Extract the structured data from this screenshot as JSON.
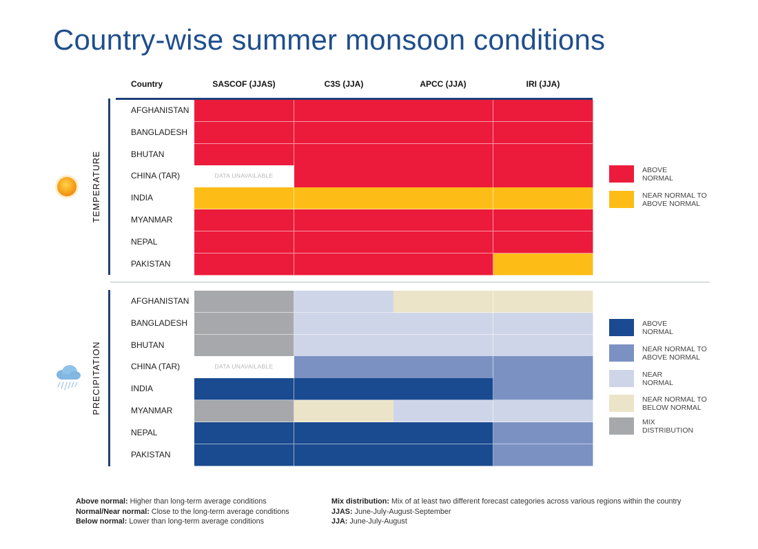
{
  "title": "Country-wise summer monsoon conditions",
  "headers": {
    "country": "Country",
    "sources": [
      "SASCOF (JJAS)",
      "C3S (JJA)",
      "APCC (JJA)",
      "IRI (JJA)"
    ]
  },
  "icons": {
    "temperature": "sun-icon",
    "precipitation": "rain-cloud-icon"
  },
  "chart_data": {
    "type": "table",
    "columns": [
      "SASCOF (JJAS)",
      "C3S (JJA)",
      "APCC (JJA)",
      "IRI (JJA)"
    ],
    "unavailable_label": "DATA UNAVAILABLE",
    "sections": [
      {
        "name": "TEMPERATURE",
        "categories": {
          "AN": {
            "label": "ABOVE\nNORMAL",
            "color": "#ec1b3b"
          },
          "NNAN": {
            "label": "NEAR NORMAL TO\nABOVE NORMAL",
            "color": "#fdbd16"
          }
        },
        "legend_order": [
          "AN",
          "NNAN"
        ],
        "rows": [
          {
            "country": "AFGHANISTAN",
            "values": [
              "AN",
              "AN",
              "AN",
              "AN"
            ]
          },
          {
            "country": "BANGLADESH",
            "values": [
              "AN",
              "AN",
              "AN",
              "AN"
            ]
          },
          {
            "country": "BHUTAN",
            "values": [
              "AN",
              "AN",
              "AN",
              "AN"
            ]
          },
          {
            "country": "CHINA (TAR)",
            "values": [
              "NA",
              "AN",
              "AN",
              "AN"
            ]
          },
          {
            "country": "INDIA",
            "values": [
              "NNAN",
              "NNAN",
              "NNAN",
              "NNAN"
            ]
          },
          {
            "country": "MYANMAR",
            "values": [
              "AN",
              "AN",
              "AN",
              "AN"
            ]
          },
          {
            "country": "NEPAL",
            "values": [
              "AN",
              "AN",
              "AN",
              "AN"
            ]
          },
          {
            "country": "PAKISTAN",
            "values": [
              "AN",
              "AN",
              "AN",
              "NNAN"
            ]
          }
        ]
      },
      {
        "name": "PRECIPITATION",
        "categories": {
          "AN": {
            "label": "ABOVE\nNORMAL",
            "color": "#1a4a8f"
          },
          "NNAN": {
            "label": "NEAR NORMAL TO\nABOVE NORMAL",
            "color": "#7a91c2"
          },
          "NN": {
            "label": "NEAR\nNORMAL",
            "color": "#cfd5e8"
          },
          "NNBN": {
            "label": "NEAR NORMAL TO\nBELOW NORMAL",
            "color": "#ece4c8"
          },
          "MIX": {
            "label": "MIX\nDISTRIBUTION",
            "color": "#a7a8ab"
          }
        },
        "legend_order": [
          "AN",
          "NNAN",
          "NN",
          "NNBN",
          "MIX"
        ],
        "rows": [
          {
            "country": "AFGHANISTAN",
            "values": [
              "MIX",
              "NN",
              "NNBN",
              "NNBN"
            ]
          },
          {
            "country": "BANGLADESH",
            "values": [
              "MIX",
              "NN",
              "NN",
              "NN"
            ]
          },
          {
            "country": "BHUTAN",
            "values": [
              "MIX",
              "NN",
              "NN",
              "NN"
            ]
          },
          {
            "country": "CHINA (TAR)",
            "values": [
              "NA",
              "NNAN",
              "NNAN",
              "NNAN"
            ]
          },
          {
            "country": "INDIA",
            "values": [
              "AN",
              "AN",
              "AN",
              "NNAN"
            ]
          },
          {
            "country": "MYANMAR",
            "values": [
              "MIX",
              "NNBN",
              "NN",
              "NN"
            ]
          },
          {
            "country": "NEPAL",
            "values": [
              "AN",
              "AN",
              "AN",
              "NNAN"
            ]
          },
          {
            "country": "PAKISTAN",
            "values": [
              "AN",
              "AN",
              "AN",
              "NNAN"
            ]
          }
        ]
      }
    ]
  },
  "notes": {
    "left": [
      {
        "term": "Above normal:",
        "text": " Higher than long-term average conditions"
      },
      {
        "term": "Normal/Near normal:",
        "text": " Close to the long-term average conditions"
      },
      {
        "term": "Below normal:",
        "text": " Lower than long-term average conditions"
      }
    ],
    "right": [
      {
        "term": "Mix distribution:",
        "text": " Mix of at least two different forecast categories across various regions within the country"
      },
      {
        "term": "JJAS:",
        "text": " June-July-August-September"
      },
      {
        "term": "JJA:",
        "text": " June-July-August"
      }
    ]
  }
}
